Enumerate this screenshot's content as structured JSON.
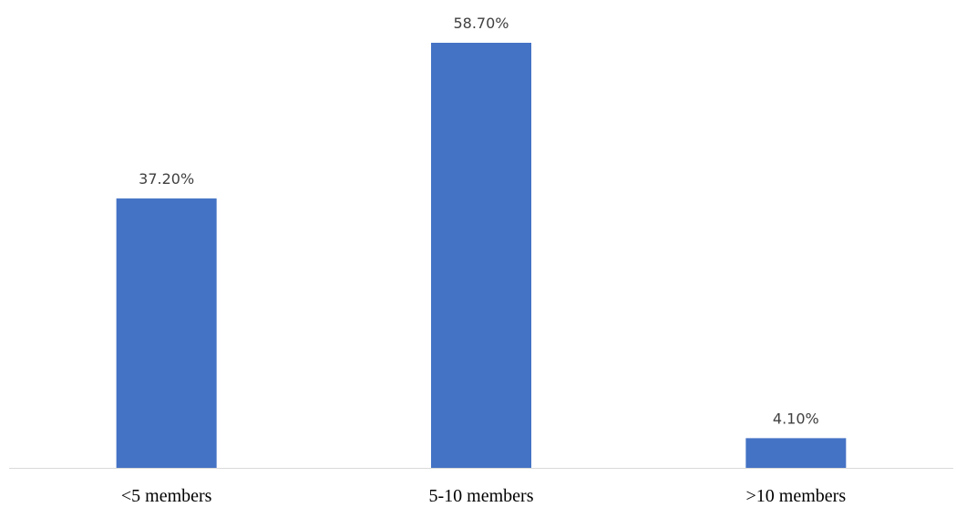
{
  "chart_data": {
    "type": "bar",
    "categories": [
      "<5 members",
      "5-10 members",
      ">10 members"
    ],
    "values": [
      37.2,
      58.7,
      4.1
    ],
    "value_labels": [
      "37.20%",
      "58.70%",
      "4.10%"
    ],
    "ylim": [
      0,
      58.7
    ],
    "grid": false,
    "legend": "none",
    "bar_color": "#4472C4",
    "axis_color": "#D9D9D9"
  }
}
